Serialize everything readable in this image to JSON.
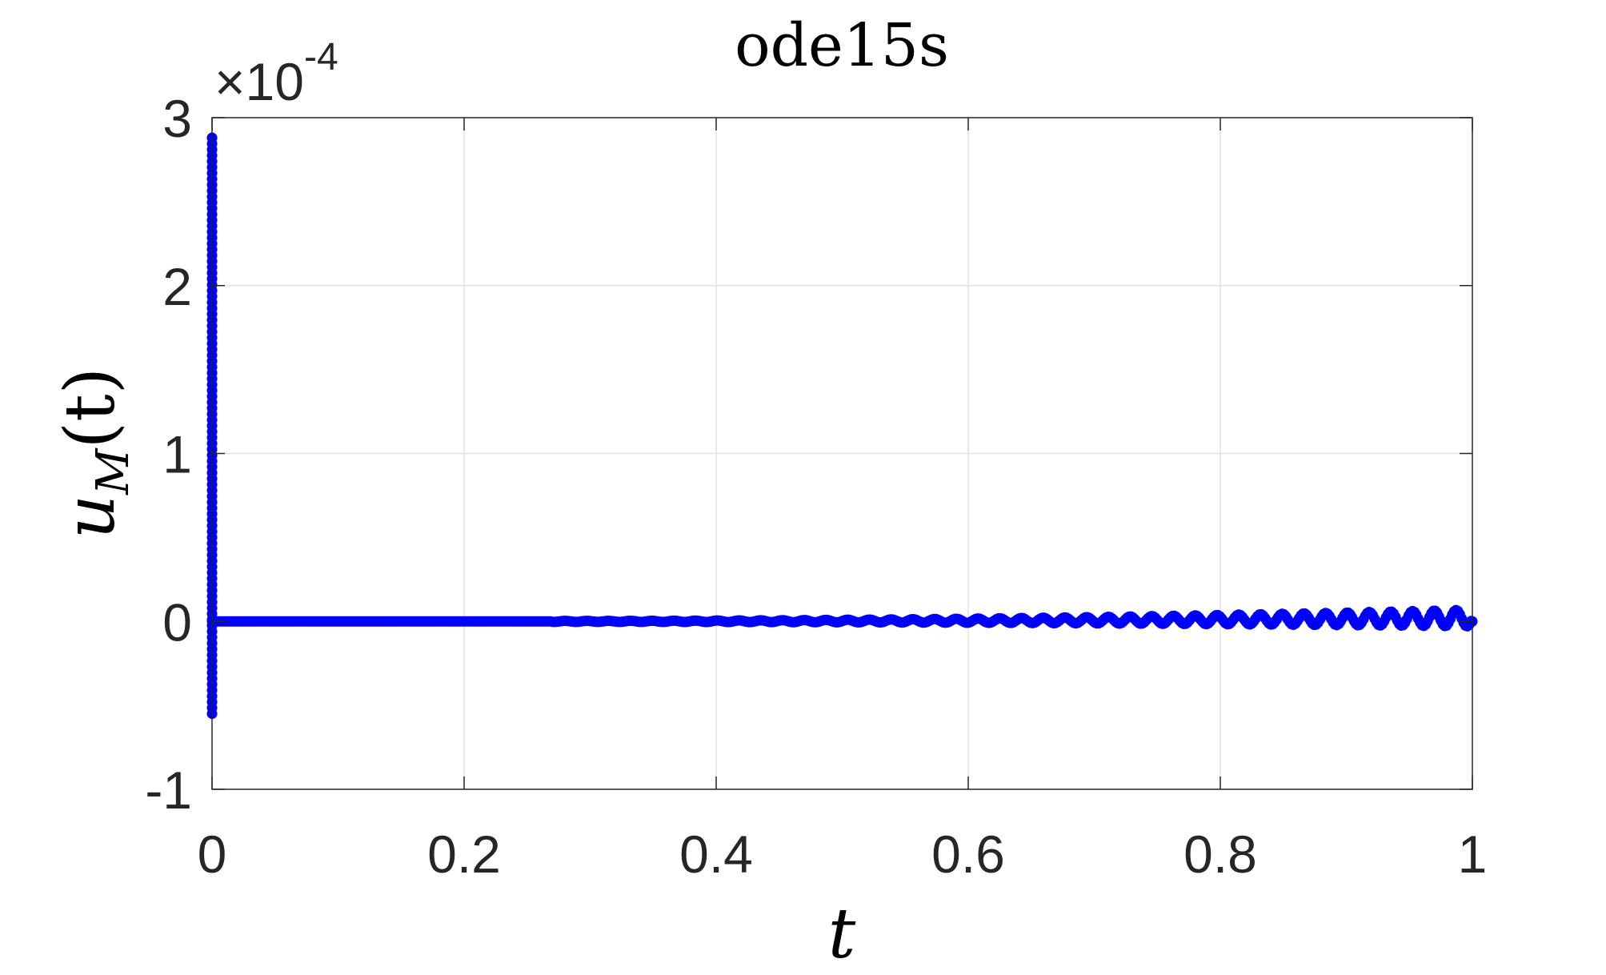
{
  "chart_data": {
    "type": "scatter",
    "title": "ode15s",
    "xlabel": "t",
    "ylabel": {
      "base": "u",
      "subscript": "M",
      "arg": "(t)"
    },
    "y_exponent": {
      "prefix": "×10",
      "power": "-4"
    },
    "xlim": [
      0,
      1
    ],
    "ylim": [
      -1,
      3
    ],
    "xticks": [
      0,
      0.2,
      0.4,
      0.6,
      0.8,
      1
    ],
    "xtick_labels": [
      "0",
      "0.2",
      "0.4",
      "0.6",
      "0.8",
      "1"
    ],
    "yticks": [
      -1,
      0,
      1,
      2,
      3
    ],
    "ytick_labels": [
      "-1",
      "0",
      "1",
      "2",
      "3"
    ],
    "grid": true,
    "marker_color": "#0000ff",
    "series": [
      {
        "spike": {
          "t": 0.0,
          "y_min": -0.55,
          "y_max": 2.88
        },
        "flat": {
          "t_start": 0.0,
          "t_end": 0.27,
          "y": 0.0
        },
        "oscillation": {
          "t_start": 0.27,
          "t_end": 1.0,
          "amplitude_start": 0.003,
          "amplitude_end": 0.05,
          "offset_end": 0.02
        },
        "end_point": {
          "t": 1.0,
          "y": 0.0
        }
      }
    ]
  }
}
